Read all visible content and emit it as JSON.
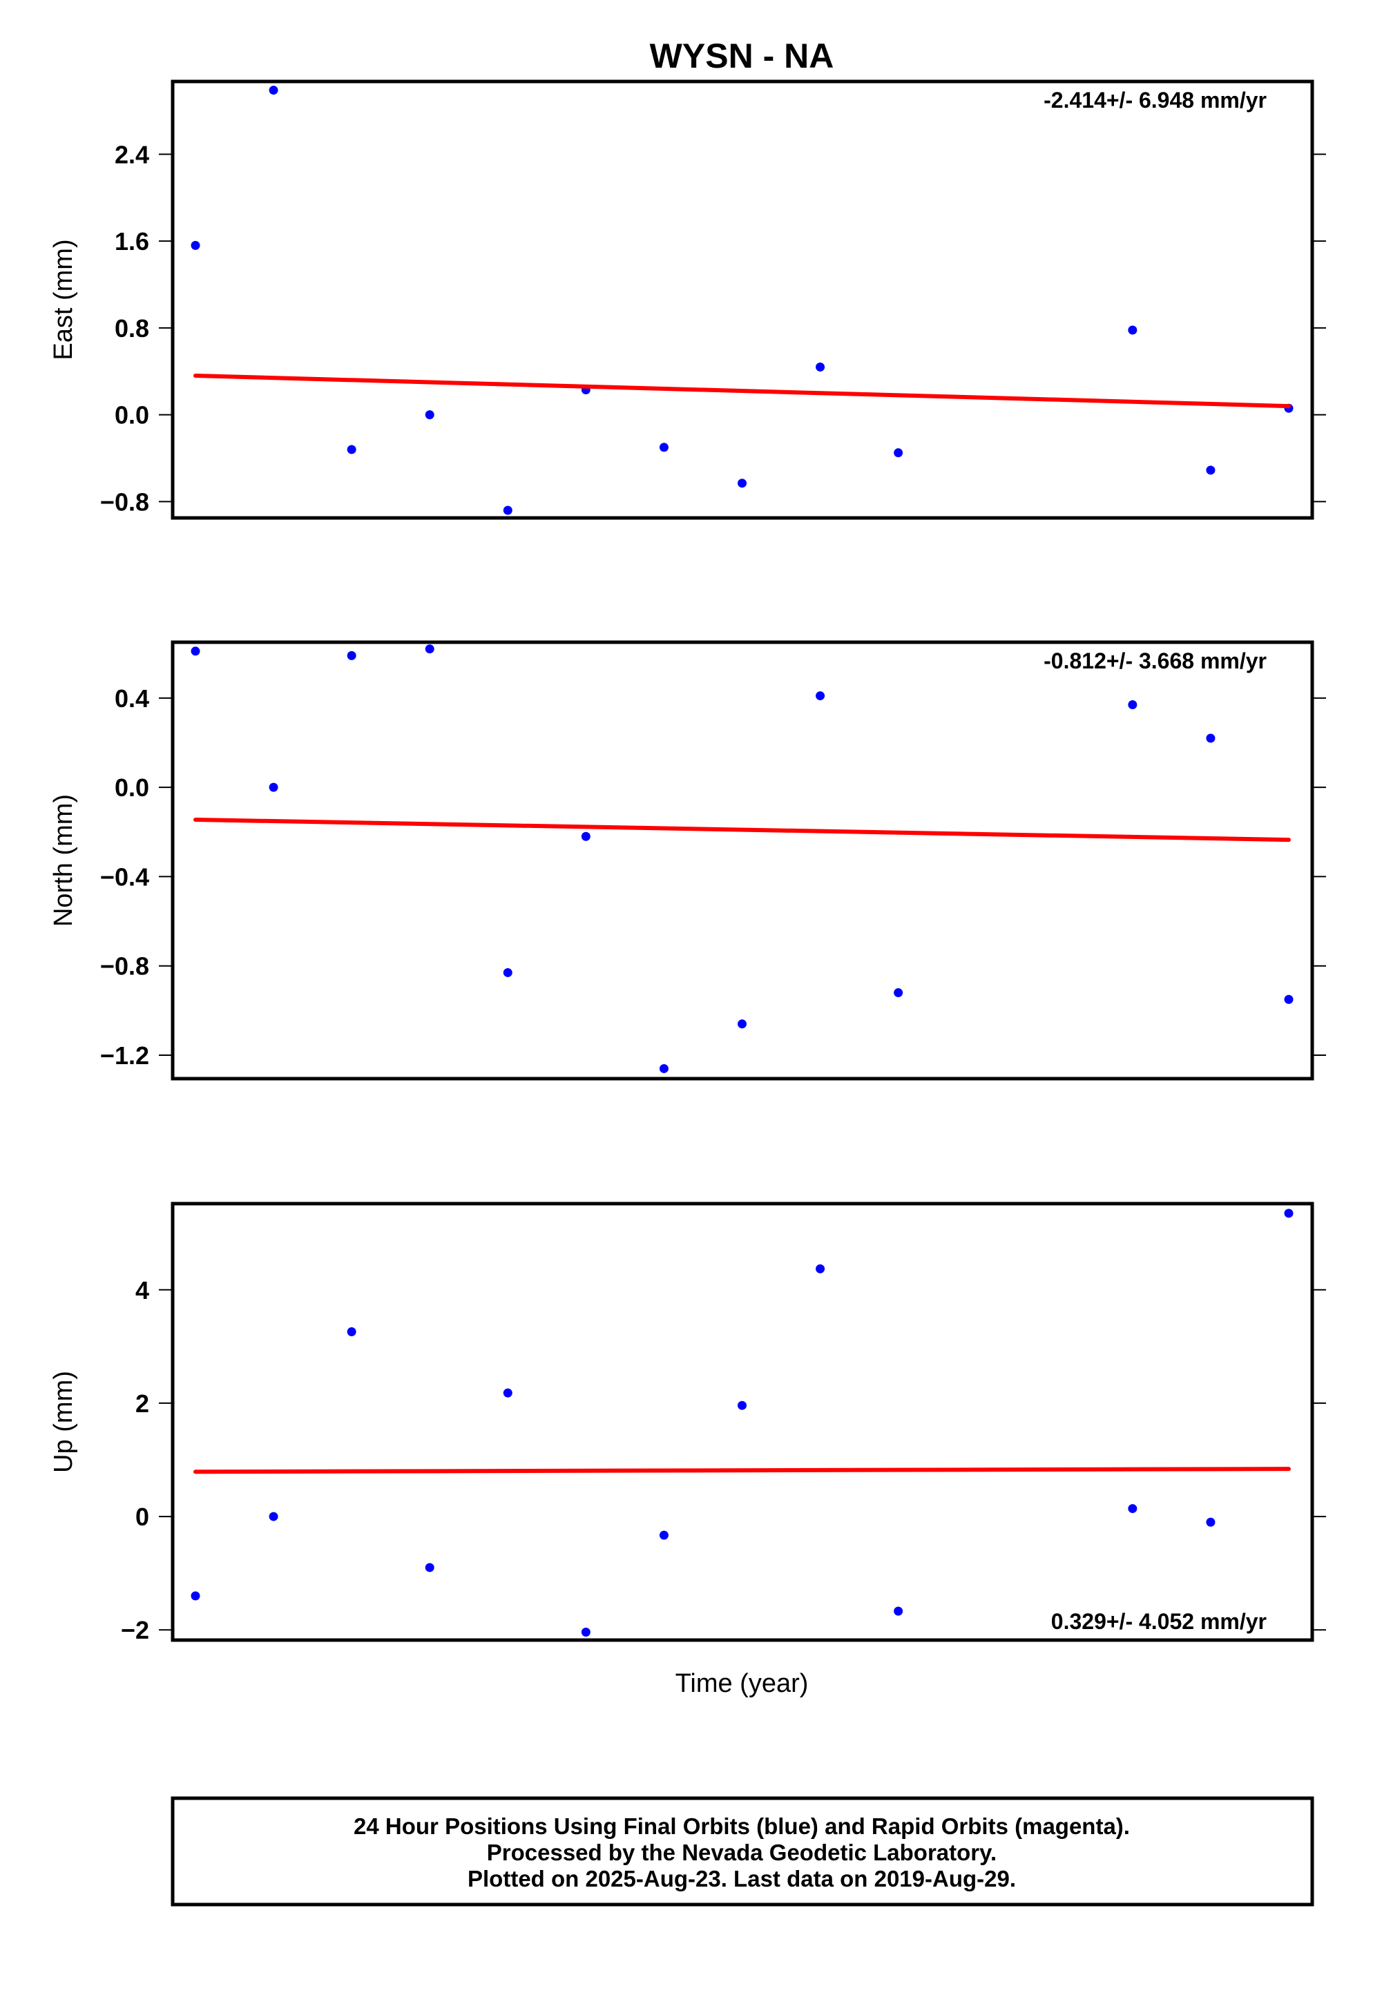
{
  "title": "WYSN - NA",
  "xlabel": "Time (year)",
  "footer": {
    "line1": "24 Hour Positions Using Final Orbits (blue) and Rapid Orbits (magenta).",
    "line2": "Processed by the Nevada Geodetic Laboratory.",
    "line3": "Plotted on 2025-Aug-23. Last data on 2019-Aug-29."
  },
  "colors": {
    "points": "#0000ff",
    "trend": "#ff0000",
    "frame": "#000000"
  },
  "chart_data": [
    {
      "type": "scatter",
      "ylabel": "East (mm)",
      "rate_label": "-2.414+/- 6.948 mm/yr",
      "rate_position": "top-right",
      "ylim": [
        -0.95,
        3.07
      ],
      "yticks": [
        2.4,
        1.6,
        0.8,
        0.0,
        -0.8
      ],
      "ytick_labels": [
        "2.4",
        "1.6",
        "0.8",
        "0.0",
        "−0.8"
      ],
      "x": [
        0,
        1,
        2,
        3,
        4,
        5,
        6,
        7,
        8,
        9,
        10,
        11,
        12,
        13,
        14
      ],
      "y": [
        1.56,
        2.99,
        -0.32,
        0.0,
        -0.88,
        0.23,
        -0.3,
        -0.63,
        0.44,
        -0.35,
        null,
        null,
        0.78,
        -0.51,
        0.06
      ],
      "trend": {
        "start": 0.36,
        "end": 0.08
      }
    },
    {
      "type": "scatter",
      "ylabel": "North (mm)",
      "rate_label": "-0.812+/- 3.668 mm/yr",
      "rate_position": "top-right",
      "ylim": [
        -1.305,
        0.65
      ],
      "yticks": [
        0.4,
        0.0,
        -0.4,
        -0.8,
        -1.2
      ],
      "ytick_labels": [
        "0.4",
        "0.0",
        "−0.4",
        "−0.8",
        "−1.2"
      ],
      "x": [
        0,
        1,
        2,
        3,
        4,
        5,
        6,
        7,
        8,
        9,
        10,
        11,
        12,
        13,
        14
      ],
      "y": [
        0.61,
        0.0,
        0.59,
        0.62,
        -0.83,
        -0.22,
        -1.26,
        -1.06,
        0.41,
        -0.92,
        null,
        null,
        0.37,
        0.22,
        -0.95
      ],
      "trend": {
        "start": -0.145,
        "end": -0.235
      }
    },
    {
      "type": "scatter",
      "ylabel": "Up (mm)",
      "rate_label": "0.329+/- 4.052 mm/yr",
      "rate_position": "bottom-right",
      "ylim": [
        -2.18,
        5.52
      ],
      "yticks": [
        4,
        2,
        0,
        -2
      ],
      "ytick_labels": [
        "4",
        "2",
        "0",
        "−2"
      ],
      "x": [
        0,
        1,
        2,
        3,
        4,
        5,
        6,
        7,
        8,
        9,
        10,
        11,
        12,
        13,
        14
      ],
      "y": [
        -1.4,
        0.0,
        3.26,
        -0.9,
        2.18,
        -2.04,
        -0.33,
        1.96,
        4.37,
        -1.67,
        null,
        null,
        0.14,
        -0.1,
        5.35
      ],
      "trend": {
        "start": 0.79,
        "end": 0.84
      }
    }
  ]
}
